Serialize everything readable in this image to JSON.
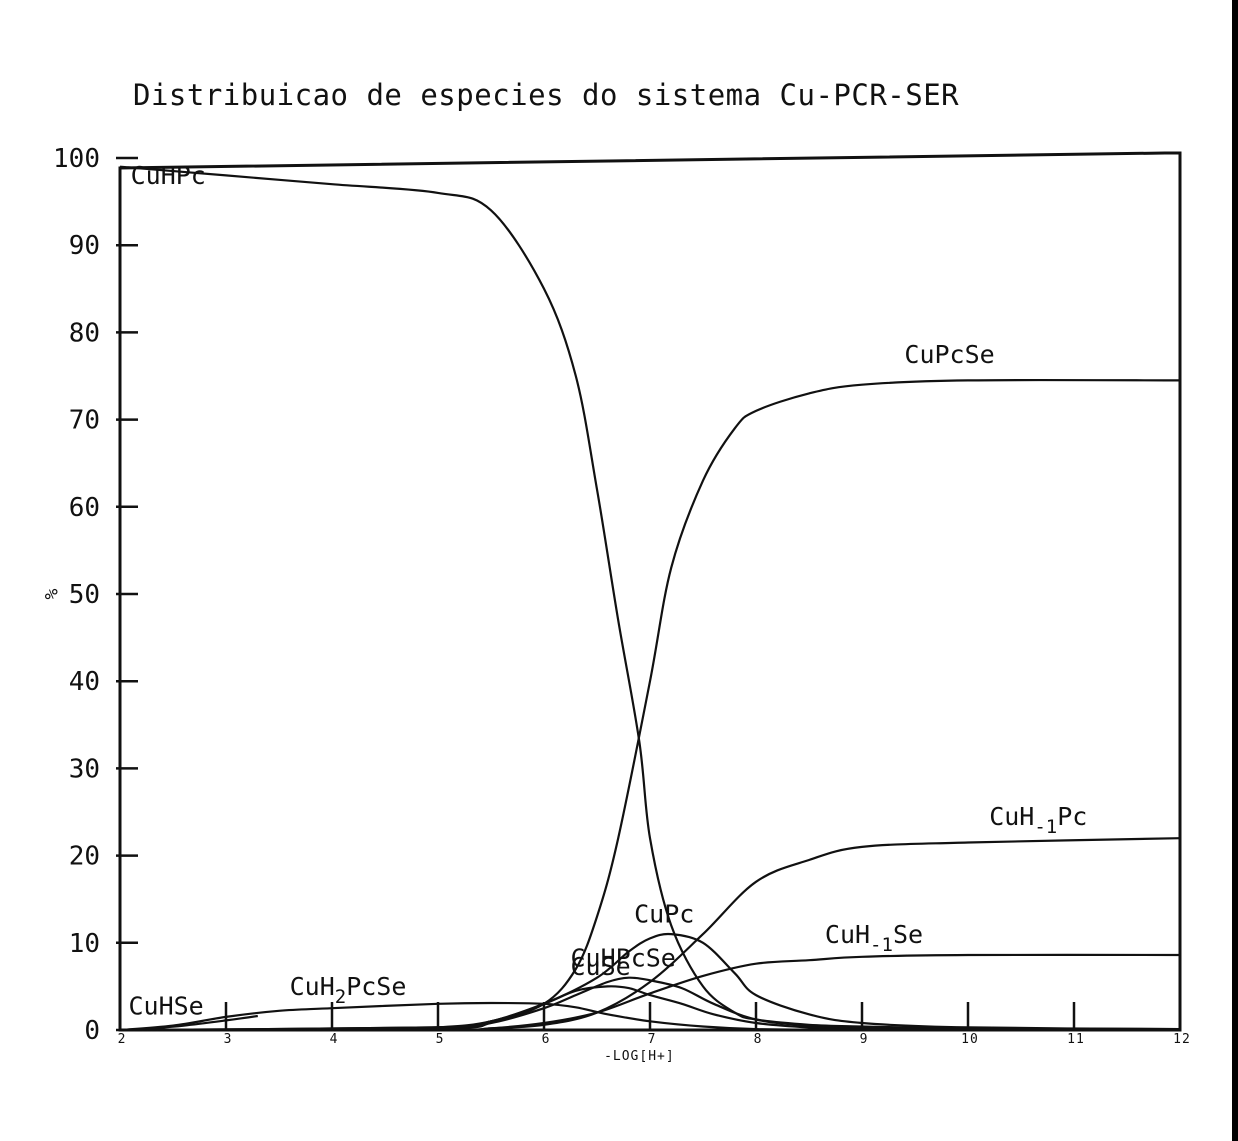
{
  "chart_data": {
    "type": "line",
    "title": "Distribuicao de especies do sistema Cu-PCR-SER",
    "xlabel": "-LOG[H+]",
    "ylabel": "%",
    "xlim": [
      2,
      12
    ],
    "ylim": [
      0,
      100
    ],
    "x_ticks": [
      "2",
      "3",
      "4",
      "5",
      "6",
      "7",
      "8",
      "9",
      "10",
      "11",
      "12"
    ],
    "y_ticks": [
      "0",
      "10",
      "20",
      "30",
      "40",
      "50",
      "60",
      "70",
      "80",
      "90",
      "100"
    ],
    "grid": false,
    "legend": "inline labels",
    "series": [
      {
        "name": "CuHPc",
        "x": [
          2,
          3,
          4,
          5,
          5.5,
          6,
          6.3,
          6.5,
          6.7,
          6.9,
          7.0,
          7.2,
          7.5,
          7.8,
          8,
          8.5,
          9,
          10,
          12
        ],
        "y": [
          99,
          98,
          97,
          96,
          94,
          85,
          75,
          62,
          47,
          33,
          22,
          12,
          5,
          2,
          1.2,
          0.6,
          0.4,
          0.2,
          0.1
        ]
      },
      {
        "name": "CuPcSe",
        "x": [
          2,
          4,
          5,
          5.5,
          6,
          6.3,
          6.5,
          6.7,
          7,
          7.2,
          7.5,
          7.8,
          8,
          8.5,
          9,
          10,
          12
        ],
        "y": [
          0,
          0,
          0.3,
          1,
          3,
          7,
          13,
          22,
          40,
          53,
          63,
          69,
          71,
          73,
          74,
          74.5,
          74.5
        ]
      },
      {
        "name": "CuH-1Pc",
        "x": [
          2,
          5,
          5.5,
          6,
          6.5,
          7,
          7.5,
          8,
          8.5,
          9,
          10,
          12
        ],
        "y": [
          0,
          0,
          0.2,
          0.6,
          2,
          5.5,
          11,
          17,
          19.5,
          21,
          21.5,
          22
        ]
      },
      {
        "name": "CuH-1Se",
        "x": [
          2,
          5,
          5.5,
          6,
          6.5,
          7,
          7.5,
          8,
          8.5,
          9,
          10,
          12
        ],
        "y": [
          0,
          0,
          0.2,
          0.8,
          2,
          4.2,
          6.2,
          7.6,
          8,
          8.4,
          8.6,
          8.6
        ]
      },
      {
        "name": "CuPc",
        "x": [
          2,
          5,
          5.5,
          6,
          6.5,
          6.8,
          7,
          7.2,
          7.5,
          7.8,
          8,
          8.5,
          9,
          10,
          12
        ],
        "y": [
          0,
          0.3,
          1,
          3,
          6,
          9,
          10.5,
          11,
          10,
          6.5,
          4,
          1.8,
          0.8,
          0.3,
          0.1
        ]
      },
      {
        "name": "CuHPcSe",
        "x": [
          2,
          5,
          5.5,
          6,
          6.3,
          6.6,
          6.8,
          7,
          7.3,
          7.6,
          8,
          8.5,
          9,
          10,
          12
        ],
        "y": [
          0,
          0.2,
          0.8,
          2.5,
          4,
          5.5,
          6,
          5.7,
          4.8,
          3,
          1.2,
          0.5,
          0.2,
          0.1,
          0
        ]
      },
      {
        "name": "CuSe",
        "x": [
          2,
          5,
          5.5,
          6,
          6.3,
          6.6,
          6.8,
          7,
          7.3,
          7.6,
          8,
          8.5,
          9,
          10,
          12
        ],
        "y": [
          0,
          0.3,
          1,
          3,
          4.5,
          5,
          4.8,
          4,
          3,
          1.8,
          0.8,
          0.3,
          0.1,
          0,
          0
        ]
      },
      {
        "name": "CuH2PcSe",
        "x": [
          2,
          2.5,
          3,
          3.5,
          4,
          5,
          5.5,
          6,
          6.3,
          6.6,
          7,
          7.5,
          8,
          9,
          12
        ],
        "y": [
          0,
          0.5,
          1.5,
          2.2,
          2.5,
          3,
          3.1,
          3,
          2.6,
          1.8,
          1,
          0.4,
          0.1,
          0,
          0
        ]
      },
      {
        "name": "CuHSe",
        "x": [
          2,
          2.3,
          2.6,
          3,
          3.3
        ],
        "y": [
          0,
          0.2,
          0.5,
          1.1,
          1.6
        ]
      }
    ],
    "series_labels": [
      {
        "series": "CuHPc",
        "text": "CuHPc",
        "sub": "",
        "suffix": "",
        "at": [
          2.1,
          97
        ]
      },
      {
        "series": "CuPcSe",
        "text": "CuPcSe",
        "sub": "",
        "suffix": "",
        "at": [
          9.4,
          76.5
        ]
      },
      {
        "series": "CuH-1Pc",
        "text": "CuH",
        "sub": "-1",
        "suffix": "Pc",
        "at": [
          10.2,
          23.5
        ]
      },
      {
        "series": "CuH-1Se",
        "text": "CuH",
        "sub": "-1",
        "suffix": "Se",
        "at": [
          8.65,
          10
        ]
      },
      {
        "series": "CuPc",
        "text": "CuPc",
        "sub": "",
        "suffix": "",
        "at": [
          6.85,
          12.3
        ]
      },
      {
        "series": "CuHPcSe",
        "text": "CuHPcSe",
        "sub": "",
        "suffix": "",
        "at": [
          6.25,
          7.3
        ]
      },
      {
        "series": "CuSe",
        "text": "CuSe",
        "sub": "",
        "suffix": "",
        "at": [
          6.25,
          6.3
        ]
      },
      {
        "series": "CuH2PcSe",
        "text": "CuH",
        "sub": "2",
        "suffix": "PcSe",
        "at": [
          3.6,
          4
        ]
      },
      {
        "series": "CuHSe",
        "text": "CuHSe",
        "sub": "",
        "suffix": "",
        "at": [
          2.08,
          1.8
        ]
      }
    ]
  }
}
